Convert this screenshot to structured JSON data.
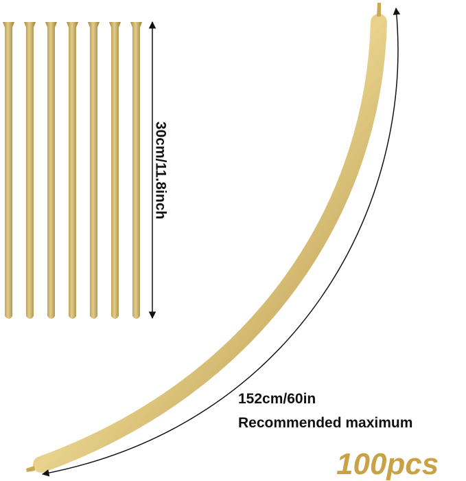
{
  "dimensions": {
    "short_length": "30cm/11.8inch",
    "inflated_length": "152cm/60in",
    "inflated_note": "Recommended maximum"
  },
  "quantity": "100pcs"
}
